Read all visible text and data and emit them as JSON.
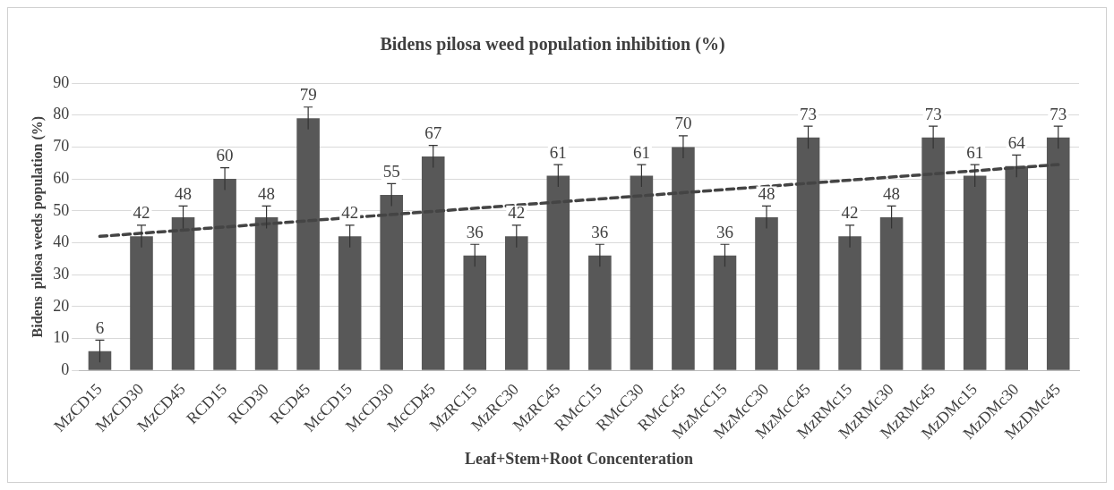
{
  "chart_data": {
    "type": "bar",
    "title": "Bidens pilosa weed population inhibition (%)",
    "xlabel": "Leaf+Stem+Root Concenteration",
    "ylabel": "Bidens  pilosa weeds population (%)",
    "categories": [
      "MzCD15",
      "MzCD30",
      "MzCD45",
      "RCD15",
      "RCD30",
      "RCD45",
      "McCD15",
      "McCD30",
      "McCD45",
      "MzRC15",
      "MzRC30",
      "MzRC45",
      "RMcC15",
      "RMcC30",
      "RMcC45",
      "MzMcC15",
      "MzMcC30",
      "MzMcC45",
      "MzRMc15",
      "MzRMc30",
      "MzRMc45",
      "MzDMc15",
      "MzDMc30",
      "MzDMc45"
    ],
    "series": [
      {
        "color": "#585858",
        "values": [
          6,
          42,
          48,
          60,
          48,
          79,
          42,
          55,
          67,
          36,
          42,
          61,
          36,
          61,
          70,
          36,
          48,
          73,
          42,
          48,
          73,
          61,
          64,
          73
        ],
        "value_labels": [
          "6",
          "42",
          "48",
          "60",
          "48",
          "79",
          "42",
          "55",
          "67",
          "36",
          "42",
          "61",
          "36",
          "61",
          "70",
          "36",
          "48",
          "73",
          "42",
          "48",
          "73",
          "61",
          "64",
          "73"
        ],
        "errors": [
          3.5,
          3.5,
          3.5,
          3.5,
          3.5,
          3.5,
          3.5,
          3.5,
          3.5,
          3.5,
          3.5,
          3.5,
          3.5,
          3.5,
          3.5,
          3.5,
          3.5,
          3.5,
          3.5,
          3.5,
          3.5,
          3.5,
          3.5,
          3.5
        ]
      },
      {
        "type": "line",
        "color": "#444444",
        "x": [
          "MzCD15",
          "MzDMc45"
        ],
        "values": [
          42,
          64.5
        ],
        "line_style": "dashed",
        "marker": "none"
      }
    ],
    "ylim": [
      0,
      90
    ],
    "yticks": [
      0,
      10,
      20,
      30,
      40,
      50,
      60,
      70,
      80,
      90
    ],
    "grid": "y",
    "legend": false
  }
}
